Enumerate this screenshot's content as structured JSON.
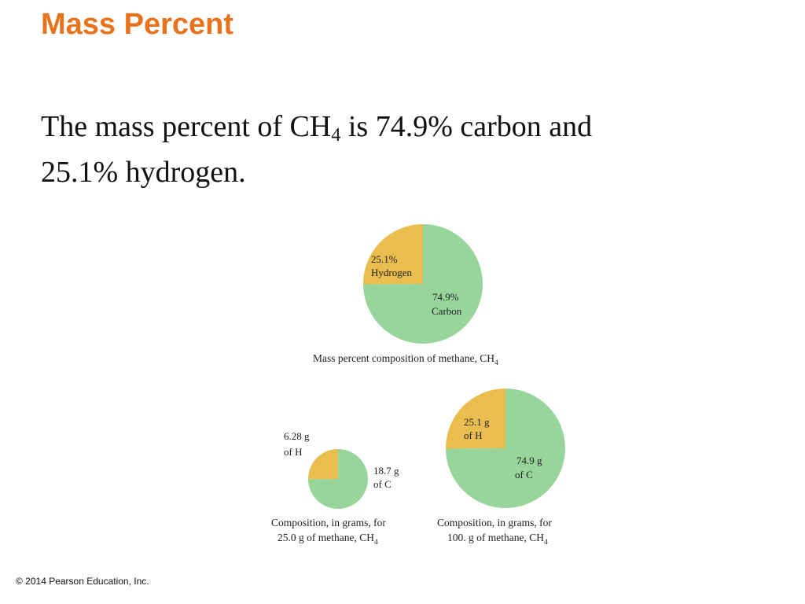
{
  "slide": {
    "title": "Mass Percent",
    "body": {
      "line1_pre": "The mass percent of CH",
      "line1_sub": "4",
      "line1_post": " is 74.9% carbon and",
      "line2": "25.1% hydrogen."
    },
    "footer": "© 2014 Pearson Education, Inc."
  },
  "colors": {
    "title": "#e8731c",
    "carbon": "#98d59b",
    "hydrogen": "#eabd4f"
  },
  "chart_data": [
    {
      "type": "pie",
      "caption": {
        "text": "Mass percent composition of methane, CH",
        "sub": "4"
      },
      "slices": [
        {
          "value": 25.1,
          "label_lines": [
            "25.1%",
            "Hydrogen"
          ],
          "color": "#eabd4f"
        },
        {
          "value": 74.9,
          "label_lines": [
            "74.9%",
            "Carbon"
          ],
          "color": "#98d59b"
        }
      ]
    },
    {
      "type": "pie",
      "caption": {
        "line1": "Composition, in grams, for",
        "line2": "25.0 g of methane, CH",
        "sub": "4"
      },
      "slices": [
        {
          "value": 6.28,
          "label_lines": [
            "6.28 g",
            "of H"
          ],
          "color": "#eabd4f"
        },
        {
          "value": 18.7,
          "label_lines": [
            "18.7 g",
            "of C"
          ],
          "color": "#98d59b"
        }
      ]
    },
    {
      "type": "pie",
      "caption": {
        "line1": "Composition, in grams, for",
        "line2": "100. g of methane, CH",
        "sub": "4"
      },
      "slices": [
        {
          "value": 25.1,
          "label_lines": [
            "25.1 g",
            "of H"
          ],
          "color": "#eabd4f"
        },
        {
          "value": 74.9,
          "label_lines": [
            "74.9 g",
            "of C"
          ],
          "color": "#98d59b"
        }
      ]
    }
  ]
}
